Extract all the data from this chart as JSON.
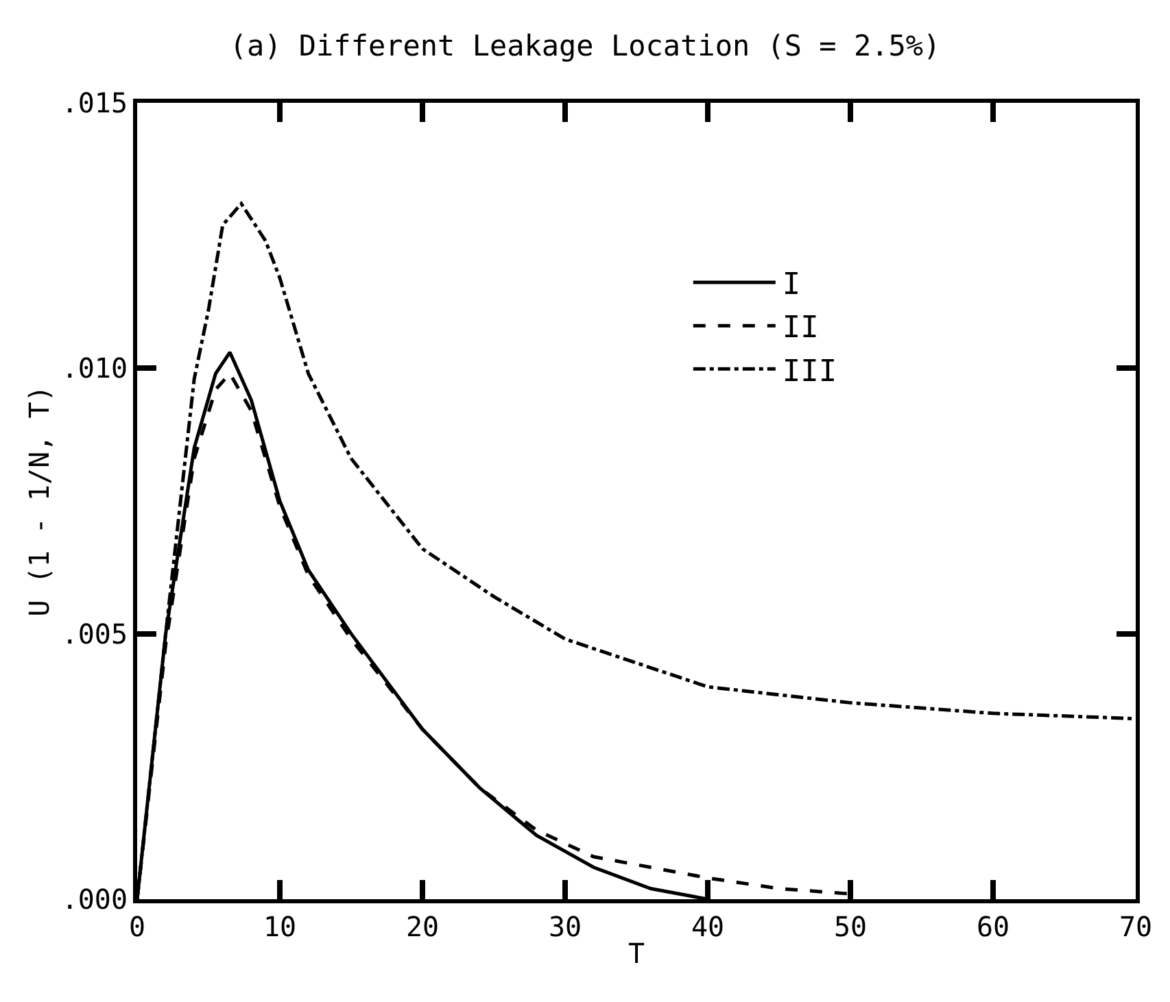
{
  "chart_data": {
    "type": "line",
    "title": "(a) Different Leakage Location (S = 2.5%)",
    "xlabel": "T",
    "ylabel": "U (1 - 1/N, T)",
    "xlim": [
      0,
      70
    ],
    "xticks": [
      0,
      10,
      20,
      30,
      40,
      50,
      60,
      70
    ],
    "ylim": [
      0,
      0.015
    ],
    "yticks": [
      {
        "value": 0,
        "label": ".000"
      },
      {
        "value": 0.005,
        "label": ".005"
      },
      {
        "value": 0.01,
        "label": ".010"
      },
      {
        "value": 0.015,
        "label": ".015"
      }
    ],
    "legend": "right",
    "marker": "none",
    "series": [
      {
        "name": "I",
        "color": "#000000",
        "line_style": "solid",
        "x": [
          0,
          2,
          4,
          5.5,
          6.5,
          8,
          10,
          12,
          15,
          20,
          24,
          28,
          32,
          36,
          40
        ],
        "values": [
          0,
          0.005,
          0.0085,
          0.0099,
          0.0103,
          0.0094,
          0.0075,
          0.0062,
          0.005,
          0.0032,
          0.0021,
          0.0012,
          0.0006,
          0.0002,
          0
        ]
      },
      {
        "name": "II",
        "color": "#000000",
        "line_style": "dashed",
        "x": [
          0,
          2,
          4,
          5.5,
          6.5,
          8,
          10,
          12,
          15,
          20,
          24,
          28,
          32,
          36,
          40,
          45,
          50
        ],
        "values": [
          0,
          0.0048,
          0.0083,
          0.0096,
          0.0099,
          0.0092,
          0.0074,
          0.0061,
          0.0049,
          0.0032,
          0.0021,
          0.0013,
          0.0008,
          0.0006,
          0.0004,
          0.0002,
          0.0001
        ]
      },
      {
        "name": "III",
        "color": "#000000",
        "line_style": "dashdot",
        "x": [
          0,
          2,
          4,
          5,
          6,
          7.3,
          9,
          10,
          12,
          15,
          20,
          25,
          30,
          40,
          50,
          60,
          70
        ],
        "values": [
          0,
          0.005,
          0.0098,
          0.0111,
          0.0127,
          0.0131,
          0.0124,
          0.0117,
          0.0099,
          0.0083,
          0.0066,
          0.0057,
          0.0049,
          0.004,
          0.0037,
          0.0035,
          0.0034
        ]
      }
    ]
  }
}
